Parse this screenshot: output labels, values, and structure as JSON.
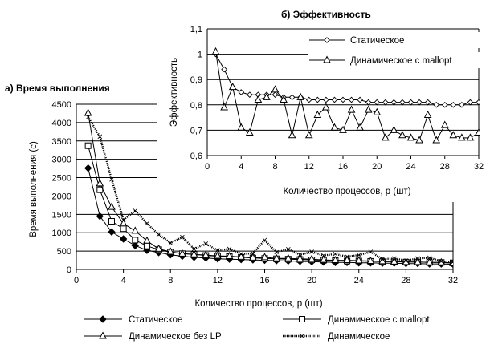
{
  "chart_data": [
    {
      "type": "line",
      "title": "а)  Время выполнения",
      "xlabel": "Количество процессов, p (шт)",
      "ylabel": "Время выполнения (с)",
      "xlim": [
        0,
        32
      ],
      "ylim": [
        0,
        4500
      ],
      "x_ticks": [
        "0",
        "4",
        "8",
        "12",
        "16",
        "20",
        "24",
        "28",
        "32"
      ],
      "y_ticks": [
        "0",
        "500",
        "1000",
        "1500",
        "2000",
        "2500",
        "3000",
        "3500",
        "4000",
        "4500"
      ],
      "grid": "horizontal",
      "legend_position": "bottom",
      "series": [
        {
          "name": "Статическое",
          "marker": "diamond-filled",
          "x": [
            1,
            2,
            3,
            4,
            5,
            6,
            7,
            8,
            9,
            10,
            11,
            12,
            13,
            14,
            15,
            16,
            17,
            18,
            19,
            20,
            21,
            22,
            23,
            24,
            25,
            26,
            27,
            28,
            29,
            30,
            31,
            32
          ],
          "y": [
            2760,
            1450,
            1020,
            830,
            650,
            520,
            460,
            400,
            360,
            330,
            310,
            290,
            280,
            270,
            260,
            250,
            240,
            230,
            220,
            210,
            200,
            190,
            190,
            180,
            180,
            170,
            170,
            160,
            160,
            150,
            150,
            140
          ]
        },
        {
          "name": "Динамическое с mallopt",
          "marker": "square-open",
          "x": [
            1,
            2,
            3,
            4,
            5,
            6,
            7,
            8,
            9,
            10,
            11,
            12,
            13,
            14,
            15,
            16,
            17,
            18,
            19,
            20,
            21,
            22,
            23,
            24,
            25,
            26,
            27,
            28,
            29,
            30,
            31,
            32
          ],
          "y": [
            3370,
            2170,
            1310,
            1110,
            800,
            640,
            540,
            470,
            430,
            410,
            380,
            360,
            350,
            330,
            310,
            300,
            290,
            280,
            270,
            260,
            250,
            240,
            230,
            230,
            220,
            210,
            210,
            200,
            200,
            190,
            190,
            180
          ]
        },
        {
          "name": "Динамическое без LP",
          "marker": "triangle-open",
          "x": [
            1,
            2,
            3,
            4,
            5,
            6,
            7,
            8,
            9,
            10,
            11,
            12,
            13,
            14,
            15,
            16,
            17,
            18,
            19,
            20,
            21,
            22,
            23,
            24,
            25,
            26,
            27,
            28,
            29,
            30,
            31,
            32
          ],
          "y": [
            4260,
            2340,
            1700,
            1250,
            1050,
            780,
            560,
            480,
            430,
            410,
            390,
            370,
            360,
            340,
            320,
            330,
            300,
            300,
            290,
            280,
            260,
            250,
            250,
            240,
            230,
            220,
            210,
            200,
            200,
            190,
            190,
            170
          ]
        },
        {
          "name": "Динамическое",
          "marker": "x-dotted",
          "x": [
            1,
            2,
            3,
            4,
            5,
            6,
            7,
            8,
            9,
            10,
            11,
            12,
            13,
            14,
            15,
            16,
            17,
            18,
            19,
            20,
            21,
            22,
            23,
            24,
            25,
            26,
            27,
            28,
            29,
            30,
            31,
            32
          ],
          "y": [
            4150,
            3620,
            2450,
            1350,
            1600,
            1250,
            950,
            720,
            880,
            560,
            700,
            520,
            560,
            420,
            440,
            800,
            470,
            550,
            400,
            480,
            380,
            420,
            350,
            390,
            480,
            280,
            300,
            240,
            300,
            320,
            220,
            200
          ]
        }
      ]
    },
    {
      "type": "line",
      "title": "б)  Эффективность",
      "xlabel": "Количество процессов, p (шт)",
      "ylabel": "Эффективность",
      "xlim": [
        0,
        32
      ],
      "ylim": [
        0.6,
        1.1
      ],
      "x_ticks": [
        "0",
        "4",
        "8",
        "12",
        "16",
        "20",
        "24",
        "28",
        "32"
      ],
      "y_ticks": [
        "0,6",
        "0,7",
        "0,8",
        "0,9",
        "1",
        "1,1"
      ],
      "grid": "horizontal",
      "legend_position": "top-right",
      "series": [
        {
          "name": "Статическое",
          "marker": "diamond-open",
          "x": [
            1,
            2,
            3,
            4,
            5,
            6,
            7,
            8,
            9,
            10,
            11,
            12,
            13,
            14,
            15,
            16,
            17,
            18,
            19,
            20,
            21,
            22,
            23,
            24,
            25,
            26,
            27,
            28,
            29,
            30,
            31,
            32
          ],
          "y": [
            1.0,
            0.94,
            0.87,
            0.85,
            0.84,
            0.84,
            0.84,
            0.84,
            0.83,
            0.83,
            0.83,
            0.82,
            0.82,
            0.82,
            0.82,
            0.82,
            0.82,
            0.82,
            0.81,
            0.81,
            0.81,
            0.81,
            0.81,
            0.81,
            0.81,
            0.81,
            0.8,
            0.8,
            0.8,
            0.8,
            0.81,
            0.81
          ]
        },
        {
          "name": "Динамическое с mallopt",
          "marker": "triangle-open",
          "x": [
            1,
            2,
            3,
            4,
            5,
            6,
            7,
            8,
            9,
            10,
            11,
            12,
            13,
            14,
            15,
            16,
            17,
            18,
            19,
            20,
            21,
            22,
            23,
            24,
            25,
            26,
            27,
            28,
            29,
            30,
            31,
            32
          ],
          "y": [
            1.01,
            0.79,
            0.87,
            0.71,
            0.69,
            0.82,
            0.83,
            0.86,
            0.82,
            0.68,
            0.83,
            0.68,
            0.76,
            0.79,
            0.71,
            0.7,
            0.78,
            0.71,
            0.78,
            0.77,
            0.67,
            0.7,
            0.68,
            0.67,
            0.66,
            0.76,
            0.66,
            0.72,
            0.68,
            0.67,
            0.67,
            0.69
          ]
        }
      ]
    }
  ]
}
